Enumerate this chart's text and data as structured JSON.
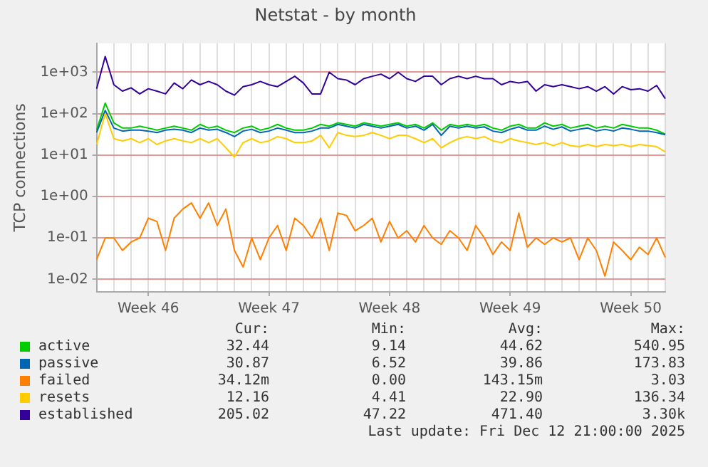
{
  "chart_data": {
    "type": "line",
    "title": "Netstat - by month",
    "ylabel": "TCP connections",
    "log": "y",
    "grid": true,
    "legend": "bottom",
    "marker": "none",
    "line_style": "solid",
    "categories": [
      null,
      null,
      null,
      null,
      null,
      null,
      "Week 46",
      null,
      null,
      null,
      null,
      null,
      null,
      null,
      null,
      null,
      null,
      null,
      null,
      null,
      "Week 47",
      null,
      null,
      null,
      null,
      null,
      null,
      null,
      null,
      null,
      null,
      null,
      null,
      null,
      "Week 48",
      null,
      null,
      null,
      null,
      null,
      null,
      null,
      null,
      null,
      null,
      null,
      null,
      null,
      "Week 49",
      null,
      null,
      null,
      null,
      null,
      null,
      null,
      null,
      null,
      null,
      null,
      null,
      null,
      "Week 50",
      null,
      null,
      null,
      null
    ],
    "ylim": [
      0.005,
      5000
    ],
    "yticks": [
      {
        "value": 0.01,
        "label": "1e-02"
      },
      {
        "value": 0.1,
        "label": "1e-01"
      },
      {
        "value": 1,
        "label": "1e+00"
      },
      {
        "value": 10,
        "label": "1e+01"
      },
      {
        "value": 100,
        "label": "1e+02"
      },
      {
        "value": 1000,
        "label": "1e+03"
      }
    ],
    "series": [
      {
        "name": "active",
        "color": "#00cc00",
        "values": [
          40,
          180,
          60,
          45,
          45,
          50,
          45,
          40,
          45,
          50,
          45,
          40,
          55,
          45,
          50,
          40,
          35,
          45,
          50,
          40,
          45,
          55,
          45,
          40,
          40,
          45,
          55,
          50,
          60,
          55,
          50,
          60,
          55,
          50,
          55,
          60,
          50,
          55,
          45,
          60,
          40,
          55,
          50,
          55,
          50,
          55,
          45,
          40,
          50,
          55,
          45,
          45,
          60,
          50,
          55,
          45,
          50,
          55,
          45,
          50,
          45,
          55,
          50,
          45,
          45,
          40,
          32
        ]
      },
      {
        "name": "passive",
        "color": "#0066b3",
        "values": [
          35,
          120,
          45,
          38,
          40,
          40,
          38,
          35,
          40,
          42,
          40,
          35,
          45,
          40,
          42,
          35,
          28,
          38,
          42,
          35,
          38,
          45,
          40,
          35,
          35,
          38,
          45,
          45,
          55,
          50,
          45,
          55,
          50,
          45,
          50,
          55,
          45,
          50,
          40,
          55,
          30,
          50,
          45,
          50,
          45,
          48,
          38,
          35,
          42,
          48,
          40,
          40,
          50,
          42,
          48,
          38,
          42,
          45,
          38,
          42,
          38,
          45,
          42,
          38,
          38,
          35,
          31
        ]
      },
      {
        "name": "failed",
        "color": "#ff8000",
        "values": [
          0.03,
          0.1,
          0.1,
          0.05,
          0.08,
          0.1,
          0.3,
          0.25,
          0.05,
          0.3,
          0.5,
          0.7,
          0.3,
          0.7,
          0.2,
          0.5,
          0.05,
          0.02,
          0.1,
          0.03,
          0.1,
          0.2,
          0.05,
          0.3,
          0.2,
          0.1,
          0.3,
          0.05,
          0.4,
          0.35,
          0.15,
          0.2,
          0.3,
          0.08,
          0.25,
          0.1,
          0.15,
          0.08,
          0.2,
          0.1,
          0.07,
          0.15,
          0.1,
          0.05,
          0.2,
          0.1,
          0.04,
          0.08,
          0.05,
          0.4,
          0.06,
          0.1,
          0.07,
          0.1,
          0.08,
          0.1,
          0.03,
          0.1,
          0.05,
          0.012,
          0.08,
          0.05,
          0.03,
          0.06,
          0.04,
          0.1,
          0.034
        ]
      },
      {
        "name": "resets",
        "color": "#ffcc00",
        "values": [
          18,
          100,
          25,
          22,
          25,
          20,
          25,
          18,
          22,
          25,
          22,
          20,
          25,
          20,
          25,
          15,
          9,
          20,
          25,
          20,
          22,
          28,
          25,
          20,
          20,
          22,
          30,
          15,
          35,
          30,
          28,
          30,
          35,
          30,
          25,
          30,
          30,
          25,
          20,
          25,
          15,
          20,
          25,
          28,
          25,
          28,
          22,
          20,
          25,
          22,
          20,
          18,
          20,
          17,
          20,
          17,
          16,
          18,
          16,
          18,
          17,
          18,
          16,
          18,
          17,
          16,
          12
        ]
      },
      {
        "name": "established",
        "color": "#330099",
        "values": [
          400,
          2400,
          500,
          350,
          420,
          300,
          400,
          350,
          300,
          550,
          400,
          650,
          500,
          600,
          500,
          350,
          280,
          450,
          500,
          600,
          500,
          450,
          600,
          800,
          550,
          300,
          300,
          1000,
          700,
          650,
          500,
          700,
          800,
          900,
          700,
          1000,
          700,
          600,
          800,
          800,
          500,
          700,
          800,
          700,
          800,
          700,
          700,
          500,
          600,
          550,
          600,
          350,
          500,
          450,
          500,
          450,
          400,
          450,
          350,
          450,
          300,
          450,
          380,
          400,
          350,
          480,
          230
        ]
      }
    ],
    "annotations": [
      "Cur:",
      "Min:",
      "Avg:",
      "Max:",
      "32.44",
      "9.14",
      "44.62",
      "540.95",
      "30.87",
      "6.52",
      "39.86",
      "173.83",
      "34.12m",
      "0.00",
      "143.15m",
      "3.03",
      "12.16",
      "4.41",
      "22.90",
      "136.34",
      "205.02",
      "47.22",
      "471.40",
      "3.30k",
      "Last update: Fri Dec 12 21:00:00 2025"
    ]
  }
}
